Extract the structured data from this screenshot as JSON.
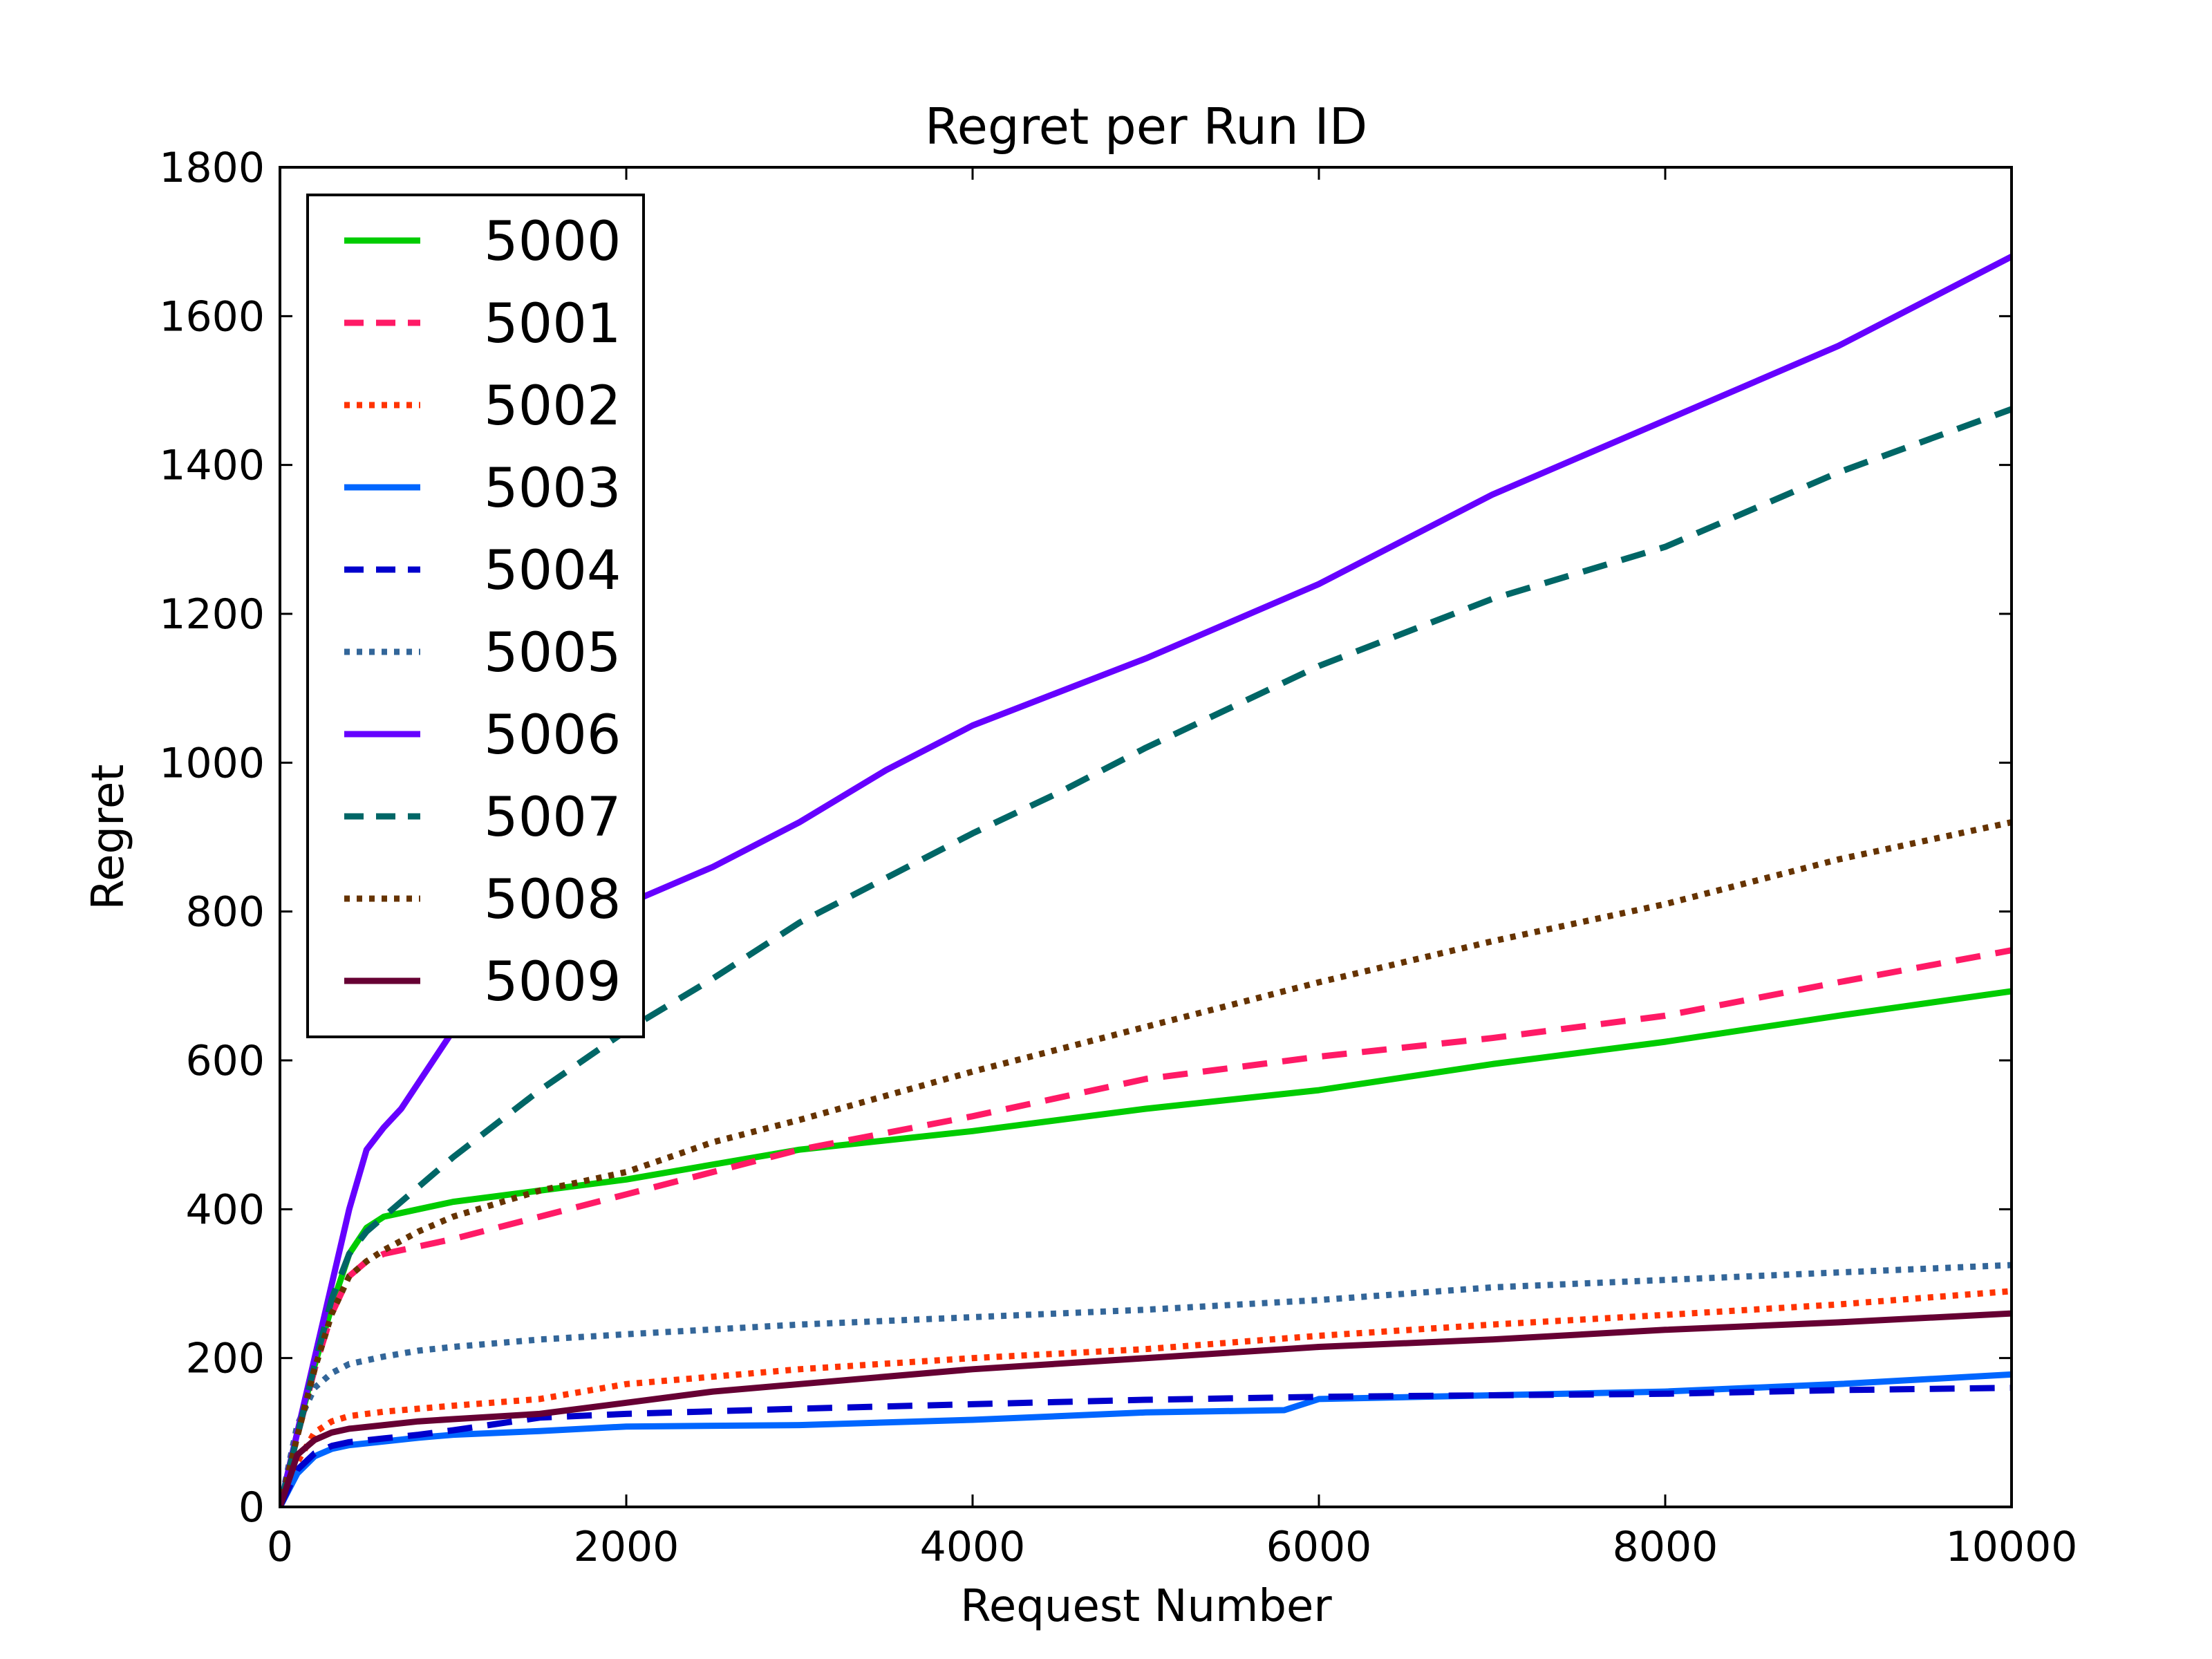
{
  "chart_data": {
    "type": "line",
    "title": "Regret per Run ID",
    "xlabel": "Request Number",
    "ylabel": "Regret",
    "xlim": [
      0,
      10000
    ],
    "ylim": [
      0,
      1800
    ],
    "x_ticks": [
      0,
      2000,
      4000,
      6000,
      8000,
      10000
    ],
    "y_ticks": [
      0,
      200,
      400,
      600,
      800,
      1000,
      1200,
      1400,
      1600,
      1800
    ],
    "x_tick_labels": [
      "0",
      "2000",
      "4000",
      "6000",
      "8000",
      "10000"
    ],
    "y_tick_labels": [
      "0",
      "200",
      "400",
      "600",
      "800",
      "1000",
      "1200",
      "1400",
      "1600",
      "1800"
    ],
    "grid": false,
    "legend_position": "top-left",
    "series": [
      {
        "name": "5000",
        "color": "#00cc00",
        "dash": "solid",
        "x": [
          0,
          100,
          200,
          300,
          400,
          500,
          600,
          800,
          1000,
          1500,
          2000,
          2500,
          3000,
          4000,
          5000,
          6000,
          7000,
          8000,
          9000,
          10000
        ],
        "y": [
          0,
          100,
          190,
          270,
          340,
          375,
          390,
          400,
          410,
          425,
          440,
          460,
          480,
          505,
          535,
          560,
          595,
          625,
          660,
          693
        ]
      },
      {
        "name": "5001",
        "color": "#ff1a66",
        "dash": "dashed",
        "x": [
          0,
          100,
          200,
          300,
          400,
          500,
          600,
          800,
          1000,
          1500,
          2000,
          2500,
          3000,
          4000,
          5000,
          6000,
          7000,
          8000,
          9000,
          10000
        ],
        "y": [
          0,
          95,
          185,
          260,
          310,
          330,
          340,
          350,
          360,
          390,
          420,
          450,
          480,
          525,
          575,
          605,
          630,
          660,
          705,
          748
        ]
      },
      {
        "name": "5002",
        "color": "#ff3300",
        "dash": "dotted",
        "x": [
          0,
          100,
          200,
          300,
          400,
          600,
          800,
          1000,
          1500,
          2000,
          2500,
          3000,
          4000,
          5000,
          6000,
          7000,
          8000,
          9000,
          10000
        ],
        "y": [
          0,
          60,
          100,
          115,
          122,
          128,
          132,
          136,
          145,
          165,
          175,
          185,
          200,
          212,
          230,
          245,
          258,
          272,
          290
        ]
      },
      {
        "name": "5003",
        "color": "#0066ff",
        "dash": "solid",
        "x": [
          0,
          100,
          200,
          300,
          400,
          600,
          800,
          1000,
          1500,
          2000,
          3000,
          4000,
          5000,
          5800,
          6000,
          7000,
          8000,
          9000,
          10000
        ],
        "y": [
          0,
          45,
          68,
          78,
          83,
          88,
          93,
          97,
          102,
          108,
          110,
          117,
          127,
          130,
          145,
          150,
          155,
          165,
          178
        ]
      },
      {
        "name": "5004",
        "color": "#0000cc",
        "dash": "dashed",
        "x": [
          0,
          100,
          200,
          300,
          400,
          600,
          800,
          1000,
          1500,
          2000,
          3000,
          4000,
          5000,
          6000,
          7000,
          8000,
          9000,
          10000
        ],
        "y": [
          0,
          50,
          72,
          82,
          87,
          92,
          97,
          103,
          120,
          125,
          132,
          138,
          144,
          148,
          150,
          152,
          157,
          160
        ]
      },
      {
        "name": "5005",
        "color": "#336699",
        "dash": "dotted",
        "x": [
          0,
          100,
          200,
          300,
          400,
          600,
          800,
          1000,
          1500,
          2000,
          3000,
          4000,
          5000,
          6000,
          7000,
          8000,
          9000,
          10000
        ],
        "y": [
          0,
          110,
          160,
          180,
          192,
          202,
          210,
          215,
          225,
          232,
          245,
          255,
          265,
          278,
          295,
          305,
          315,
          325
        ]
      },
      {
        "name": "5006",
        "color": "#6600ff",
        "dash": "solid",
        "x": [
          0,
          100,
          200,
          300,
          400,
          500,
          600,
          700,
          800,
          1000,
          1500,
          2000,
          2500,
          3000,
          3500,
          4000,
          5000,
          6000,
          7000,
          8000,
          9000,
          10000
        ],
        "y": [
          0,
          100,
          200,
          300,
          400,
          480,
          510,
          535,
          570,
          640,
          740,
          810,
          860,
          920,
          990,
          1050,
          1140,
          1240,
          1360,
          1460,
          1560,
          1680
        ]
      },
      {
        "name": "5007",
        "color": "#006666",
        "dash": "dashed",
        "x": [
          0,
          100,
          200,
          300,
          400,
          500,
          600,
          800,
          1000,
          1500,
          2000,
          2500,
          3000,
          3500,
          4000,
          4500,
          5000,
          6000,
          7000,
          8000,
          9000,
          10000
        ],
        "y": [
          0,
          95,
          190,
          280,
          340,
          370,
          390,
          430,
          470,
          560,
          640,
          710,
          785,
          845,
          905,
          960,
          1020,
          1130,
          1220,
          1290,
          1390,
          1475
        ]
      },
      {
        "name": "5008",
        "color": "#663300",
        "dash": "dotted",
        "x": [
          0,
          100,
          200,
          300,
          400,
          500,
          600,
          800,
          1000,
          1500,
          2000,
          2500,
          3000,
          4000,
          5000,
          6000,
          7000,
          8000,
          9000,
          10000
        ],
        "y": [
          0,
          95,
          185,
          260,
          310,
          330,
          345,
          370,
          390,
          425,
          450,
          490,
          520,
          585,
          645,
          705,
          760,
          810,
          870,
          920
        ]
      },
      {
        "name": "5009",
        "color": "#660033",
        "dash": "solid",
        "x": [
          0,
          100,
          200,
          300,
          400,
          600,
          800,
          1000,
          1500,
          2000,
          2500,
          3000,
          4000,
          5000,
          6000,
          7000,
          8000,
          9000,
          10000
        ],
        "y": [
          0,
          70,
          90,
          100,
          105,
          110,
          115,
          118,
          125,
          140,
          155,
          165,
          185,
          200,
          215,
          225,
          238,
          248,
          260
        ]
      }
    ]
  }
}
